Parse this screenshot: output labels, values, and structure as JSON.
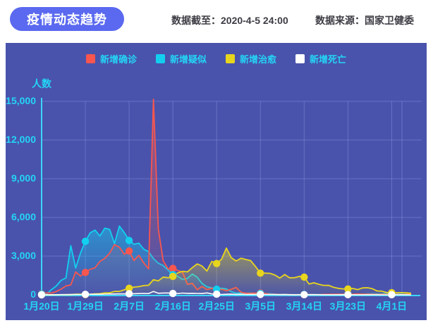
{
  "header": {
    "title": "疫情动态趋势",
    "data_cutoff": "数据截至：2020-4-5 24:00",
    "data_source": "数据来源：国家卫健委"
  },
  "colors": {
    "pill_bg": "#5a69ef",
    "panel_bg": "#4953ac",
    "axis_cyan": "#24d5f4",
    "grid_line": "rgba(180,193,255,0.28)",
    "axis_line": "#3cd5f5"
  },
  "chart_data": {
    "type": "line",
    "title": "疫情动态趋势",
    "ylabel": "人数",
    "ylim": [
      0,
      15000
    ],
    "grid": true,
    "legend_position": "top",
    "y_ticks": [
      "15,000",
      "12,000",
      "9,000",
      "6,000",
      "3,000",
      "0"
    ],
    "x_tick_labels": [
      "1月20日",
      "1月29日",
      "2月7日",
      "2月16日",
      "2月25日",
      "3月5日",
      "3月14日",
      "3月23日",
      "4月1日"
    ],
    "x_tick_day_indices": [
      0,
      9,
      18,
      27,
      36,
      45,
      54,
      63,
      72
    ],
    "x_range_days": 77,
    "series": [
      {
        "name": "新增确诊",
        "color": "#f8564f",
        "values": [
          77,
          149,
          131,
          259,
          444,
          688,
          769,
          1771,
          1459,
          1737,
          1982,
          2102,
          2590,
          2829,
          3235,
          3887,
          3694,
          3143,
          3399,
          2656,
          3062,
          2478,
          2015,
          15152,
          5090,
          2641,
          2009,
          2048,
          1886,
          1749,
          820,
          889,
          397,
          648,
          409,
          508,
          406,
          433,
          327,
          427,
          573,
          202,
          125,
          119,
          139,
          143,
          99,
          44,
          40,
          19,
          24,
          15,
          8,
          11,
          20,
          16,
          21,
          13,
          34,
          39,
          41,
          46,
          39,
          78,
          47,
          67,
          55,
          54,
          45,
          31,
          48,
          36,
          35,
          31,
          19,
          30,
          39
        ]
      },
      {
        "name": "新增疑似",
        "color": "#12cff0",
        "values": [
          54,
          37,
          393,
          680,
          1118,
          1309,
          3806,
          2077,
          3248,
          4148,
          4812,
          5019,
          4562,
          5173,
          5072,
          3971,
          5328,
          4833,
          4214,
          3916,
          4008,
          3536,
          3342,
          2807,
          2450,
          2277,
          1918,
          1563,
          1432,
          1185,
          1277,
          1614,
          1361,
          882,
          620,
          530,
          439,
          508,
          452,
          248,
          132,
          141,
          129,
          143,
          102,
          102,
          99,
          84,
          45,
          33,
          31,
          22,
          15,
          17,
          27,
          22,
          39,
          21,
          23,
          31,
          39,
          36,
          47,
          35,
          33,
          44,
          58,
          69,
          85,
          72,
          89,
          135,
          75,
          63,
          56,
          48,
          88
        ]
      },
      {
        "name": "新增治愈",
        "color": "#e8d51e",
        "values": [
          0,
          0,
          0,
          6,
          3,
          11,
          9,
          43,
          43,
          21,
          47,
          72,
          85,
          147,
          157,
          262,
          261,
          387,
          510,
          600,
          632,
          716,
          744,
          1171,
          1081,
          1373,
          1323,
          1425,
          1701,
          1824,
          1779,
          2109,
          2393,
          2230,
          1846,
          2589,
          2422,
          2750,
          3622,
          2885,
          2623,
          2837,
          2742,
          2652,
          2189,
          1681,
          1678,
          1661,
          1535,
          1297,
          1578,
          1318,
          1325,
          1430,
          1370,
          838,
          930,
          819,
          730,
          736,
          590,
          504,
          459,
          456,
          491,
          401,
          537,
          549,
          477,
          300,
          282,
          170,
          167,
          154,
          168,
          155,
          122
        ]
      },
      {
        "name": "新增死亡",
        "color": "#ffffff",
        "values": [
          6,
          3,
          8,
          8,
          16,
          15,
          24,
          26,
          26,
          38,
          43,
          46,
          45,
          57,
          64,
          65,
          73,
          73,
          86,
          89,
          97,
          108,
          97,
          254,
          121,
          143,
          142,
          105,
          98,
          136,
          114,
          118,
          109,
          97,
          150,
          71,
          52,
          29,
          44,
          47,
          35,
          42,
          31,
          38,
          31,
          30,
          28,
          27,
          22,
          17,
          22,
          11,
          7,
          13,
          10,
          14,
          13,
          11,
          8,
          3,
          7,
          6,
          9,
          7,
          4,
          6,
          5,
          3,
          5,
          4,
          1,
          1,
          7,
          6,
          4,
          3,
          1
        ]
      }
    ]
  }
}
